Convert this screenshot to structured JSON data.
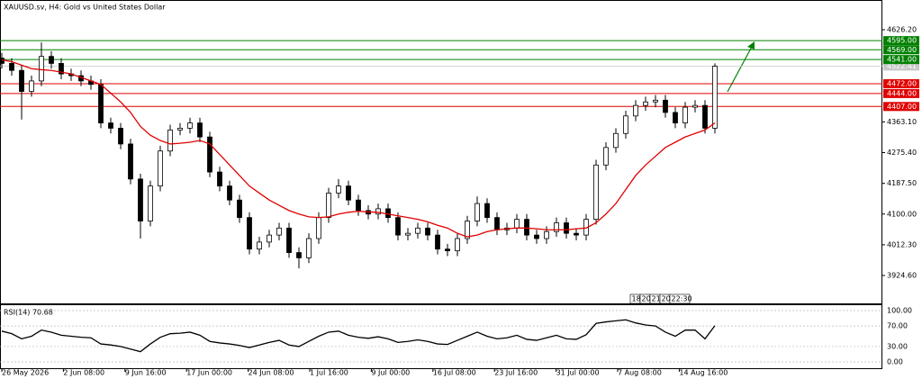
{
  "chart_data": {
    "type": "candlestick",
    "title": "XAUUSD.sv, H4:  Gold vs United States Dollar",
    "up_color": "#ffffff",
    "down_color": "#000000",
    "ma_color": "#e00000",
    "open": [
      4545,
      4530,
      4510,
      4450,
      4480,
      4550,
      4530,
      4500,
      4495,
      4480,
      4470,
      4360,
      4345,
      4300,
      4200,
      4080,
      4180,
      4280,
      4340,
      4345,
      4360,
      4320,
      4220,
      4180,
      4140,
      4090,
      4000,
      4020,
      4040,
      4060,
      3990,
      3975,
      4030,
      4090,
      4160,
      4180,
      4140,
      4110,
      4100,
      4115,
      4090,
      4040,
      4045,
      4060,
      4040,
      4000,
      3995,
      4030,
      4080,
      4130,
      4090,
      4055,
      4060,
      4085,
      4040,
      4030,
      4050,
      4075,
      4045,
      4040,
      4085,
      4240,
      4290,
      4330,
      4380,
      4410,
      4420,
      4425,
      4390,
      4360,
      4405,
      4410,
      4345
    ],
    "high": [
      4560,
      4545,
      4525,
      4495,
      4590,
      4565,
      4545,
      4515,
      4510,
      4495,
      4485,
      4375,
      4360,
      4315,
      4215,
      4195,
      4295,
      4355,
      4360,
      4375,
      4375,
      4335,
      4235,
      4195,
      4155,
      4105,
      4035,
      4055,
      4075,
      4075,
      4005,
      4045,
      4105,
      4175,
      4200,
      4195,
      4155,
      4125,
      4130,
      4130,
      4105,
      4060,
      4075,
      4075,
      4055,
      4015,
      4045,
      4095,
      4150,
      4145,
      4105,
      4075,
      4100,
      4100,
      4055,
      4065,
      4090,
      4090,
      4060,
      4100,
      4255,
      4305,
      4345,
      4395,
      4425,
      4435,
      4440,
      4440,
      4405,
      4420,
      4425,
      4425,
      4530
    ],
    "low": [
      4515,
      4495,
      4370,
      4435,
      4465,
      4515,
      4485,
      4480,
      4465,
      4455,
      4345,
      4330,
      4285,
      4185,
      4030,
      4065,
      4165,
      4265,
      4325,
      4330,
      4305,
      4205,
      4165,
      4125,
      4075,
      3985,
      3985,
      4005,
      4025,
      3975,
      3945,
      3960,
      4015,
      4075,
      4145,
      4125,
      4095,
      4085,
      4085,
      4075,
      4025,
      4025,
      4030,
      4025,
      3985,
      3980,
      3980,
      4015,
      4065,
      4075,
      4040,
      4040,
      4045,
      4025,
      4015,
      4015,
      4035,
      4030,
      4025,
      4025,
      4070,
      4225,
      4275,
      4315,
      4365,
      4395,
      4405,
      4375,
      4345,
      4345,
      4390,
      4330,
      4330
    ],
    "close": [
      4530,
      4510,
      4450,
      4480,
      4550,
      4530,
      4500,
      4495,
      4480,
      4470,
      4360,
      4345,
      4300,
      4200,
      4080,
      4180,
      4280,
      4340,
      4345,
      4360,
      4320,
      4220,
      4180,
      4140,
      4090,
      4000,
      4020,
      4040,
      4060,
      3990,
      3975,
      4030,
      4090,
      4160,
      4180,
      4140,
      4110,
      4100,
      4115,
      4090,
      4040,
      4045,
      4060,
      4040,
      4000,
      3995,
      4030,
      4080,
      4130,
      4090,
      4055,
      4060,
      4085,
      4040,
      4030,
      4050,
      4075,
      4045,
      4040,
      4085,
      4240,
      4290,
      4330,
      4380,
      4410,
      4420,
      4425,
      4390,
      4360,
      4405,
      4410,
      4345,
      4522
    ],
    "ma": [
      4540,
      4535,
      4525,
      4515,
      4512,
      4510,
      4505,
      4500,
      4490,
      4480,
      4470,
      4445,
      4420,
      4390,
      4350,
      4325,
      4310,
      4300,
      4302,
      4305,
      4310,
      4300,
      4270,
      4240,
      4210,
      4180,
      4160,
      4140,
      4125,
      4110,
      4100,
      4092,
      4090,
      4092,
      4100,
      4105,
      4108,
      4106,
      4105,
      4100,
      4095,
      4090,
      4085,
      4078,
      4068,
      4060,
      4045,
      4035,
      4040,
      4050,
      4055,
      4058,
      4060,
      4060,
      4058,
      4055,
      4055,
      4055,
      4058,
      4060,
      4075,
      4100,
      4130,
      4170,
      4210,
      4240,
      4265,
      4290,
      4305,
      4320,
      4330,
      4340,
      4360
    ],
    "ylim": [
      3845,
      4711
    ],
    "yticks": [
      {
        "value": 4626.2,
        "label": "4626.20"
      },
      {
        "value": 4363.1,
        "label": "4363.10"
      },
      {
        "value": 4275.4,
        "label": "4275.40"
      },
      {
        "value": 4187.5,
        "label": "4187.50"
      },
      {
        "value": 4100,
        "label": "4100.00"
      },
      {
        "value": 4012.3,
        "label": "4012.30"
      },
      {
        "value": 3924.6,
        "label": "3924.60"
      }
    ],
    "last_price": 4522.41,
    "levels": [
      {
        "value": 4595,
        "label": "4595.00",
        "color": "#008000"
      },
      {
        "value": 4569,
        "label": "4569.00",
        "color": "#008000"
      },
      {
        "value": 4541,
        "label": "4541.00",
        "color": "#008000"
      },
      {
        "value": 4472,
        "label": "4472.00",
        "color": "#e00000"
      },
      {
        "value": 4444,
        "label": "4444.00",
        "color": "#e00000"
      },
      {
        "value": 4407,
        "label": "4407.00",
        "color": "#e00000"
      }
    ],
    "x_labels": [
      "26 May 2026",
      "2 Jun 08:00",
      "9 Jun 16:00",
      "17 Jun 00:00",
      "24 Jun 08:00",
      "1 Jul 16:00",
      "9 Jul 00:00",
      "16 Jul 08:00",
      "23 Jul 16:00",
      "31 Jul 00:00",
      "7 Aug 08:00",
      "14 Aug 16:00"
    ],
    "time_tags": [
      "18:",
      "20",
      "21",
      "20",
      "22:30"
    ],
    "rsi_label": "RSI(14) 70.68",
    "rsi": [
      60,
      55,
      45,
      50,
      62,
      58,
      52,
      50,
      48,
      47,
      35,
      33,
      30,
      25,
      20,
      35,
      48,
      55,
      56,
      58,
      52,
      40,
      37,
      35,
      32,
      28,
      33,
      38,
      42,
      33,
      30,
      40,
      50,
      58,
      60,
      52,
      48,
      46,
      49,
      45,
      38,
      40,
      43,
      40,
      35,
      34,
      42,
      50,
      58,
      50,
      45,
      47,
      52,
      44,
      42,
      47,
      52,
      45,
      44,
      53,
      75,
      78,
      80,
      82,
      76,
      72,
      70,
      58,
      50,
      62,
      62,
      45,
      70.68
    ],
    "rsi_color": "#000000",
    "rsi_ylim": [
      -14,
      112.3
    ],
    "rsi_ticks": [
      {
        "value": 100,
        "label": "100.00"
      },
      {
        "value": 70,
        "label": "70.00"
      },
      {
        "value": 30,
        "label": "30.00"
      },
      {
        "value": 0,
        "label": "0.00"
      }
    ]
  }
}
